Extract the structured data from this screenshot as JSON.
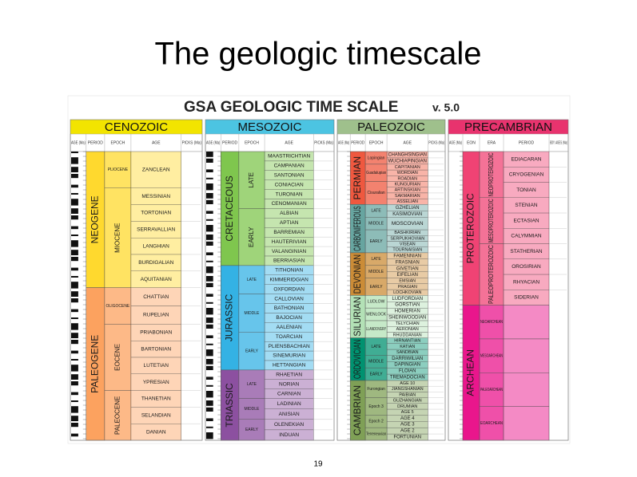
{
  "title": "The geologic timescale",
  "figure": {
    "title": "GSA GEOLOGIC TIME SCALE",
    "version": "v. 5.0",
    "panels": [
      {
        "header": "CENOZOIC",
        "color": "#f2e400",
        "columns": [
          "AGE (Ma)",
          "PERIOD",
          "EPOCH",
          "AGE",
          "PICKS (Ma)"
        ],
        "periods": [
          {
            "name": "NEOGENE",
            "color": "#ffd92e",
            "epochs": [
              {
                "name": "PLIOCENE",
                "stages": [
                  "ZANCLEAN"
                ]
              },
              {
                "name": "MIOCENE",
                "stages": [
                  "MESSINIAN",
                  "TORTONIAN",
                  "SERRAVALLIAN",
                  "LANGHIAN",
                  "BURDIGALIAN",
                  "AQUITANIAN"
                ]
              }
            ]
          },
          {
            "name": "PALEOGENE",
            "color": "#fca25f",
            "epochs": [
              {
                "name": "OLIGOCENE",
                "stages": [
                  "CHATTIAN",
                  "RUPELIAN"
                ]
              },
              {
                "name": "EOCENE",
                "stages": [
                  "PRIABONIAN",
                  "BARTONIAN",
                  "LUTETIAN",
                  "YPRESIAN"
                ]
              },
              {
                "name": "PALEOCENE",
                "stages": [
                  "THANETIAN",
                  "SELANDIAN",
                  "DANIAN"
                ]
              }
            ]
          }
        ]
      },
      {
        "header": "MESOZOIC",
        "color": "#4cc4e2",
        "columns": [
          "AGE (Ma)",
          "PERIOD",
          "EPOCH",
          "AGE",
          "PICKS (Ma)"
        ],
        "periods": [
          {
            "name": "CRETACEOUS",
            "color": "#7fc64e",
            "epochs": [
              {
                "name": "LATE",
                "stages": [
                  "MAASTRICHTIAN",
                  "CAMPANIAN",
                  "SANTONIAN",
                  "CONIACIAN",
                  "TURONIAN",
                  "CENOMANIAN"
                ]
              },
              {
                "name": "EARLY",
                "stages": [
                  "ALBIAN",
                  "APTIAN",
                  "BARREMIAN",
                  "HAUTERIVIAN",
                  "VALANGINIAN",
                  "BERRIASIAN"
                ]
              }
            ]
          },
          {
            "name": "JURASSIC",
            "color": "#34b2e4",
            "epochs": [
              {
                "name": "LATE",
                "stages": [
                  "TITHONIAN",
                  "KIMMERIDGIAN",
                  "OXFORDIAN"
                ]
              },
              {
                "name": "MIDDLE",
                "stages": [
                  "CALLOVIAN",
                  "BATHONIAN",
                  "BAJOCIAN",
                  "AALENIAN"
                ]
              },
              {
                "name": "EARLY",
                "stages": [
                  "TOARCIAN",
                  "PLIENSBACHIAN",
                  "SINEMURIAN",
                  "HETTANGIAN"
                ]
              }
            ]
          },
          {
            "name": "TRIASSIC",
            "color": "#8c50a0",
            "epochs": [
              {
                "name": "LATE",
                "stages": [
                  "RHAETIAN",
                  "NORIAN",
                  "CARNIAN"
                ]
              },
              {
                "name": "MIDDLE",
                "stages": [
                  "LADINIAN",
                  "ANISIAN"
                ]
              },
              {
                "name": "EARLY",
                "stages": [
                  "OLENEKIAN",
                  "INDUAN"
                ]
              }
            ]
          }
        ]
      },
      {
        "header": "PALEOZOIC",
        "color": "#9fc08c",
        "columns": [
          "AGE (Ma)",
          "PERIOD",
          "EPOCH",
          "AGE",
          "PICKS (Ma)"
        ],
        "periods": [
          {
            "name": "PERMIAN",
            "color": "#ef583f",
            "epochs": [
              {
                "name": "Lopingian",
                "stages": [
                  "CHANGHSINGIAN",
                  "WUCHIAPINGIAN"
                ]
              },
              {
                "name": "Guadalupian",
                "stages": [
                  "CAPITANIAN",
                  "WORDIAN",
                  "ROADIAN"
                ]
              },
              {
                "name": "Cisuralian",
                "stages": [
                  "KUNGURIAN",
                  "ARTINSKIAN",
                  "SAKMARIAN",
                  "ASSELIAN"
                ]
              }
            ]
          },
          {
            "name": "CARBONIFEROUS",
            "color": "#67a5a0",
            "epochs": [
              {
                "name": "LATE",
                "stages": [
                  "GZHELIAN",
                  "KASIMOVIAN"
                ]
              },
              {
                "name": "MIDDLE",
                "stages": [
                  "MOSCOVIAN"
                ]
              },
              {
                "name": "EARLY",
                "stages": [
                  "BASHKIRIAN",
                  "SERPUKHOVIAN",
                  "VISEAN",
                  "TOURNAISIAN"
                ]
              }
            ]
          },
          {
            "name": "DEVONIAN",
            "color": "#cb8c37",
            "epochs": [
              {
                "name": "LATE",
                "stages": [
                  "FAMENNIAN",
                  "FRASNIAN"
                ]
              },
              {
                "name": "MIDDLE",
                "stages": [
                  "GIVETIAN",
                  "EIFELIAN"
                ]
              },
              {
                "name": "EARLY",
                "stages": [
                  "EMSIAN",
                  "PRAGIAN",
                  "LOCHKOVIAN"
                ]
              }
            ]
          },
          {
            "name": "SILURIAN",
            "color": "#b3e1b6",
            "epochs": [
              {
                "name": "LUDLOW",
                "stages": [
                  "LUDFORDIAN",
                  "GORSTIAN"
                ]
              },
              {
                "name": "WENLOCK",
                "stages": [
                  "HOMERIAN",
                  "SHEINWOODIAN"
                ]
              },
              {
                "name": "LLANDOVERY",
                "stages": [
                  "TELYCHIAN",
                  "AERONIAN",
                  "RHUDDANIAN"
                ]
              }
            ]
          },
          {
            "name": "ORDOVICIAN",
            "color": "#009270",
            "epochs": [
              {
                "name": "LATE",
                "stages": [
                  "HIRNANTIAN",
                  "KATIAN",
                  "SANDBIAN"
                ]
              },
              {
                "name": "MIDDLE",
                "stages": [
                  "DARRIWILIAN",
                  "DAPINGIAN"
                ]
              },
              {
                "name": "EARLY",
                "stages": [
                  "FLOIAN",
                  "TREMADOCIAN"
                ]
              }
            ]
          },
          {
            "name": "CAMBRIAN",
            "color": "#7fa056",
            "epochs": [
              {
                "name": "Furongian",
                "stages": [
                  "AGE 10",
                  "JIANGSHANIAN",
                  "PAIBIAN"
                ]
              },
              {
                "name": "Epoch 3",
                "stages": [
                  "GUZHANGIAN",
                  "DRUMIAN",
                  "AGE 5"
                ]
              },
              {
                "name": "Epoch 2",
                "stages": [
                  "AGE 4",
                  "AGE 3"
                ]
              },
              {
                "name": "Terreneuvian",
                "stages": [
                  "AGE 2",
                  "FORTUNIAN"
                ]
              }
            ]
          }
        ]
      },
      {
        "header": "PRECAMBRIAN",
        "color": "#e8336e",
        "columns": [
          "AGE (Ma)",
          "EON",
          "ERA",
          "PERIOD",
          "BDY. AGES (Ma)"
        ],
        "periods": [
          {
            "name": "PROTEROZOIC",
            "color": "#f04374",
            "epochs": [
              {
                "name": "NEOPROTEROZOIC",
                "stages": [
                  "EDIACARAN",
                  "CRYOGENIAN",
                  "TONIAN"
                ]
              },
              {
                "name": "MESOPROTEROZOIC",
                "stages": [
                  "STENIAN",
                  "ECTASIAN",
                  "CALYMMIAN"
                ]
              },
              {
                "name": "PALEOPROTEROZOIC",
                "stages": [
                  "STATHERIAN",
                  "OROSIRIAN",
                  "RHYACIAN",
                  "SIDERIAN"
                ]
              }
            ]
          },
          {
            "name": "ARCHEAN",
            "color": "#e9168c",
            "epochs": [
              {
                "name": "NEOARCHEAN",
                "stages": []
              },
              {
                "name": "MESOARCHEAN",
                "stages": []
              },
              {
                "name": "PALEOARCHEAN",
                "stages": []
              },
              {
                "name": "EOARCHEAN",
                "stages": []
              }
            ]
          }
        ]
      }
    ]
  },
  "page_number": "19"
}
